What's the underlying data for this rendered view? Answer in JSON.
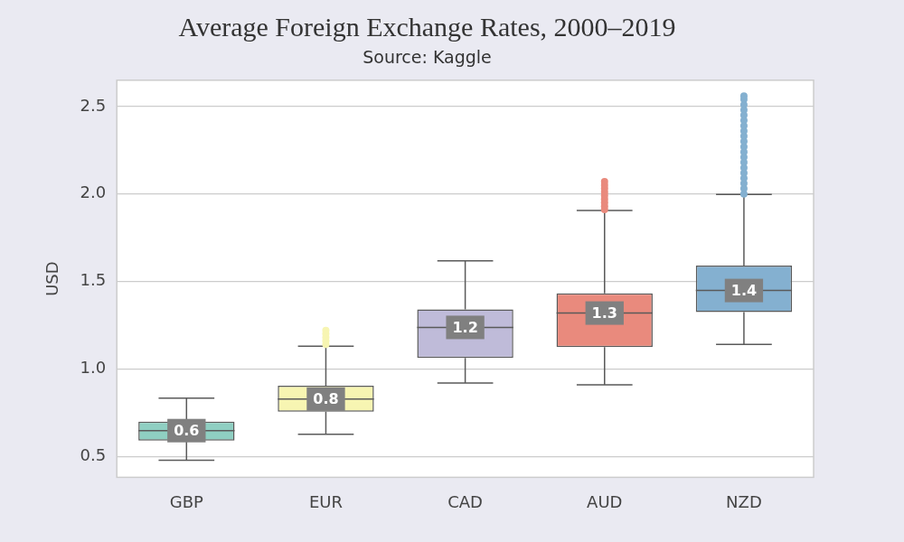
{
  "chart_data": {
    "type": "box",
    "title": "Average Foreign Exchange Rates, 2000–2019",
    "subtitle": "Source: Kaggle",
    "y_label": "USD",
    "categories": [
      "GBP",
      "EUR",
      "CAD",
      "AUD",
      "NZD"
    ],
    "colors": [
      "#8fcfc2",
      "#f7f5b2",
      "#bfbbd9",
      "#e98a7d",
      "#84b0d0"
    ],
    "whisker_low": [
      0.477,
      0.626,
      0.919,
      0.909,
      1.14
    ],
    "q1": [
      0.59,
      0.755,
      1.063,
      1.124,
      1.324
    ],
    "median": [
      0.647,
      0.827,
      1.237,
      1.319,
      1.448
    ],
    "q3": [
      0.698,
      0.903,
      1.34,
      1.432,
      1.591
    ],
    "whisker_high": [
      0.832,
      1.13,
      1.617,
      1.905,
      1.997
    ],
    "outliers": [
      [],
      [
        1.14,
        1.16,
        1.18,
        1.2,
        1.22
      ],
      [],
      [
        1.91,
        1.93,
        1.95,
        1.97,
        1.99,
        2.01,
        2.03,
        2.05,
        2.07
      ],
      [
        2.0,
        2.03,
        2.06,
        2.09,
        2.12,
        2.15,
        2.18,
        2.21,
        2.24,
        2.27,
        2.3,
        2.33,
        2.36,
        2.39,
        2.42,
        2.45,
        2.48,
        2.51,
        2.54,
        2.56
      ]
    ],
    "value_labels": [
      "0.6",
      "0.8",
      "1.2",
      "1.3",
      "1.4"
    ],
    "data_labels": true,
    "ylim": [
      0.38,
      2.65
    ],
    "yticks": [
      0.5,
      {
        "value": 1,
        "label": "1.0"
      },
      1.5,
      {
        "value": 2,
        "label": "2.0"
      },
      2.5
    ],
    "grid": true
  }
}
